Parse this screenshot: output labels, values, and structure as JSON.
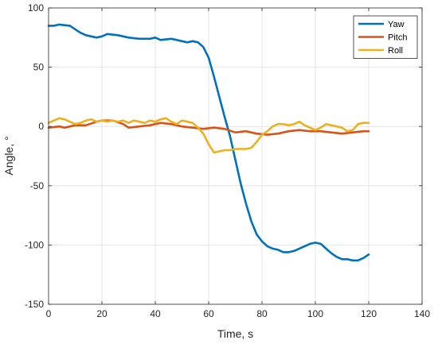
{
  "chart_data": {
    "type": "line",
    "xlabel": "Time, s",
    "ylabel": "Angle, °",
    "xlim": [
      0,
      140
    ],
    "ylim": [
      -150,
      100
    ],
    "xticks": [
      0,
      20,
      40,
      60,
      80,
      100,
      120,
      140
    ],
    "yticks": [
      -150,
      -100,
      -50,
      0,
      50,
      100
    ],
    "grid": true,
    "legend_position": "top-right",
    "series": [
      {
        "name": "Yaw",
        "color": "#0072BD",
        "points": [
          [
            0,
            85
          ],
          [
            2,
            85
          ],
          [
            4,
            86
          ],
          [
            8,
            85
          ],
          [
            10,
            82
          ],
          [
            12,
            79
          ],
          [
            14,
            77
          ],
          [
            18,
            75
          ],
          [
            20,
            76
          ],
          [
            22,
            78
          ],
          [
            26,
            77
          ],
          [
            30,
            75
          ],
          [
            34,
            74
          ],
          [
            38,
            74
          ],
          [
            40,
            75
          ],
          [
            42,
            73
          ],
          [
            46,
            74
          ],
          [
            50,
            72
          ],
          [
            52,
            71
          ],
          [
            54,
            72
          ],
          [
            56,
            71
          ],
          [
            58,
            67
          ],
          [
            60,
            58
          ],
          [
            62,
            42
          ],
          [
            64,
            25
          ],
          [
            66,
            8
          ],
          [
            68,
            -8
          ],
          [
            70,
            -28
          ],
          [
            72,
            -48
          ],
          [
            74,
            -65
          ],
          [
            76,
            -80
          ],
          [
            78,
            -91
          ],
          [
            80,
            -97
          ],
          [
            82,
            -101
          ],
          [
            84,
            -103
          ],
          [
            86,
            -104
          ],
          [
            88,
            -106
          ],
          [
            90,
            -106
          ],
          [
            92,
            -105
          ],
          [
            94,
            -103
          ],
          [
            96,
            -101
          ],
          [
            98,
            -99
          ],
          [
            100,
            -98
          ],
          [
            102,
            -99
          ],
          [
            104,
            -103
          ],
          [
            106,
            -107
          ],
          [
            108,
            -110
          ],
          [
            110,
            -112
          ],
          [
            112,
            -112
          ],
          [
            114,
            -113
          ],
          [
            116,
            -113
          ],
          [
            118,
            -111
          ],
          [
            120,
            -108
          ]
        ]
      },
      {
        "name": "Pitch",
        "color": "#D95319",
        "points": [
          [
            0,
            -1
          ],
          [
            4,
            0
          ],
          [
            6,
            -1
          ],
          [
            10,
            1
          ],
          [
            14,
            1
          ],
          [
            18,
            4
          ],
          [
            20,
            5
          ],
          [
            24,
            5
          ],
          [
            28,
            2
          ],
          [
            30,
            -1
          ],
          [
            34,
            0
          ],
          [
            38,
            1
          ],
          [
            42,
            3
          ],
          [
            46,
            2
          ],
          [
            50,
            0
          ],
          [
            54,
            -1
          ],
          [
            58,
            -2
          ],
          [
            62,
            -1
          ],
          [
            66,
            -2
          ],
          [
            70,
            -5
          ],
          [
            74,
            -4
          ],
          [
            78,
            -6
          ],
          [
            82,
            -7
          ],
          [
            86,
            -6
          ],
          [
            90,
            -4
          ],
          [
            94,
            -3
          ],
          [
            98,
            -4
          ],
          [
            102,
            -4
          ],
          [
            106,
            -5
          ],
          [
            110,
            -6
          ],
          [
            114,
            -5
          ],
          [
            118,
            -4
          ],
          [
            120,
            -4
          ]
        ]
      },
      {
        "name": "Roll",
        "color": "#EDB120",
        "points": [
          [
            0,
            3
          ],
          [
            2,
            5
          ],
          [
            4,
            7
          ],
          [
            6,
            6
          ],
          [
            8,
            4
          ],
          [
            10,
            2
          ],
          [
            12,
            3
          ],
          [
            14,
            5
          ],
          [
            16,
            6
          ],
          [
            18,
            4
          ],
          [
            20,
            5
          ],
          [
            22,
            4
          ],
          [
            24,
            5
          ],
          [
            26,
            4
          ],
          [
            28,
            5
          ],
          [
            30,
            3
          ],
          [
            32,
            5
          ],
          [
            34,
            4
          ],
          [
            36,
            3
          ],
          [
            38,
            5
          ],
          [
            40,
            4
          ],
          [
            42,
            6
          ],
          [
            44,
            7
          ],
          [
            46,
            4
          ],
          [
            48,
            2
          ],
          [
            50,
            5
          ],
          [
            52,
            4
          ],
          [
            54,
            3
          ],
          [
            56,
            -1
          ],
          [
            58,
            -6
          ],
          [
            60,
            -15
          ],
          [
            62,
            -22
          ],
          [
            64,
            -21
          ],
          [
            66,
            -20
          ],
          [
            68,
            -20
          ],
          [
            70,
            -19
          ],
          [
            74,
            -19
          ],
          [
            76,
            -18
          ],
          [
            78,
            -13
          ],
          [
            80,
            -7
          ],
          [
            82,
            -4
          ],
          [
            84,
            0
          ],
          [
            86,
            2
          ],
          [
            88,
            2
          ],
          [
            90,
            1
          ],
          [
            92,
            2
          ],
          [
            94,
            4
          ],
          [
            96,
            1
          ],
          [
            98,
            -1
          ],
          [
            100,
            -3
          ],
          [
            102,
            -1
          ],
          [
            104,
            2
          ],
          [
            106,
            1
          ],
          [
            108,
            0
          ],
          [
            110,
            -1
          ],
          [
            112,
            -4
          ],
          [
            114,
            -3
          ],
          [
            116,
            2
          ],
          [
            118,
            3
          ],
          [
            120,
            3
          ]
        ]
      }
    ]
  }
}
